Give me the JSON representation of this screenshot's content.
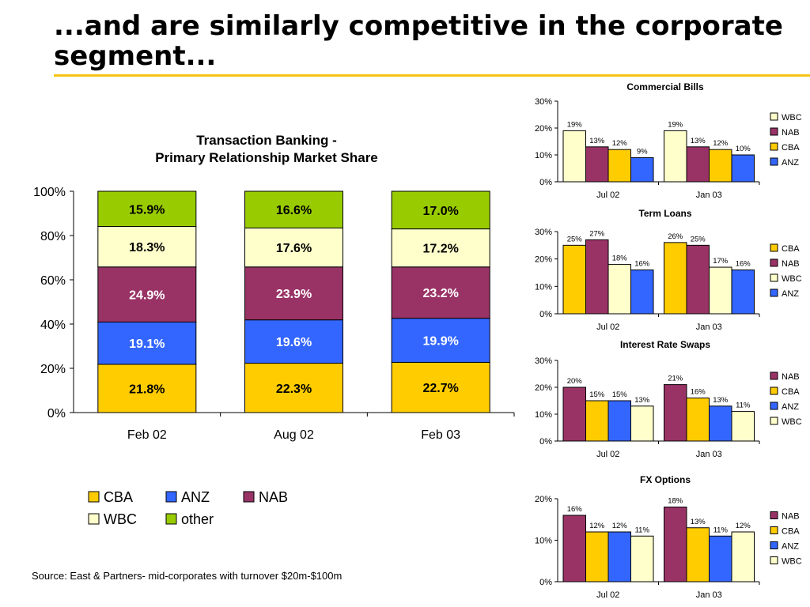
{
  "slide": {
    "title": "...and are similarly competitive in the corporate segment...",
    "source": "Source: East & Partners- mid-corporates with turnover $20m-$100m"
  },
  "colors": {
    "CBA": "#ffcc00",
    "ANZ": "#3366ff",
    "NAB": "#993366",
    "WBC": "#ffffcc",
    "other": "#99cc00",
    "accent_rule": "#f5c518"
  },
  "chart_data": [
    {
      "id": "transaction-banking",
      "type": "bar",
      "stacked": true,
      "title": [
        "Transaction Banking -",
        "Primary Relationship Market Share"
      ],
      "categories": [
        "Feb 02",
        "Aug 02",
        "Feb 03"
      ],
      "series": [
        {
          "name": "CBA",
          "values": [
            21.8,
            22.3,
            22.7
          ]
        },
        {
          "name": "ANZ",
          "values": [
            19.1,
            19.6,
            19.9
          ]
        },
        {
          "name": "NAB",
          "values": [
            24.9,
            23.9,
            23.2
          ]
        },
        {
          "name": "WBC",
          "values": [
            18.3,
            17.6,
            17.2
          ]
        },
        {
          "name": "other",
          "values": [
            15.9,
            16.6,
            17.0
          ]
        }
      ],
      "labels": [
        [
          "21.8%",
          "22.3%",
          "22.7%"
        ],
        [
          "19.1%",
          "19.6%",
          "19.9%"
        ],
        [
          "24.9%",
          "23.9%",
          "23.2%"
        ],
        [
          "18.3%",
          "17.6%",
          "17.2%"
        ],
        [
          "15.9%",
          "16.6%",
          "17.0%"
        ]
      ],
      "yticks": [
        "0%",
        "20%",
        "40%",
        "60%",
        "80%",
        "100%"
      ],
      "ylim": [
        0,
        100
      ],
      "legend": [
        "CBA",
        "ANZ",
        "NAB",
        "WBC",
        "other"
      ],
      "legend_position": "bottom"
    },
    {
      "id": "commercial-bills",
      "type": "bar",
      "title": "Commercial Bills",
      "categories": [
        "Jul 02",
        "Jan 03"
      ],
      "series": [
        {
          "name": "WBC",
          "values": [
            19,
            19
          ]
        },
        {
          "name": "NAB",
          "values": [
            13,
            13
          ]
        },
        {
          "name": "CBA",
          "values": [
            12,
            12
          ]
        },
        {
          "name": "ANZ",
          "values": [
            9,
            10
          ]
        }
      ],
      "labels": [
        [
          "19%",
          "19%"
        ],
        [
          "13%",
          "13%"
        ],
        [
          "12%",
          "12%"
        ],
        [
          "9%",
          "10%"
        ]
      ],
      "yticks": [
        "0%",
        "10%",
        "20%",
        "30%"
      ],
      "ylim": [
        0,
        30
      ],
      "legend_position": "right"
    },
    {
      "id": "term-loans",
      "type": "bar",
      "title": "Term Loans",
      "categories": [
        "Jul 02",
        "Jan 03"
      ],
      "series": [
        {
          "name": "CBA",
          "values": [
            25,
            26
          ]
        },
        {
          "name": "NAB",
          "values": [
            27,
            25
          ]
        },
        {
          "name": "WBC",
          "values": [
            18,
            17
          ]
        },
        {
          "name": "ANZ",
          "values": [
            16,
            16
          ]
        }
      ],
      "labels": [
        [
          "25%",
          "26%"
        ],
        [
          "27%",
          "25%"
        ],
        [
          "18%",
          "17%"
        ],
        [
          "16%",
          "16%"
        ]
      ],
      "yticks": [
        "0%",
        "10%",
        "20%",
        "30%"
      ],
      "ylim": [
        0,
        30
      ],
      "legend_position": "right"
    },
    {
      "id": "interest-rate-swaps",
      "type": "bar",
      "title": "Interest Rate Swaps",
      "categories": [
        "Jul 02",
        "Jan 03"
      ],
      "series": [
        {
          "name": "NAB",
          "values": [
            20,
            21
          ]
        },
        {
          "name": "CBA",
          "values": [
            15,
            16
          ]
        },
        {
          "name": "ANZ",
          "values": [
            15,
            13
          ]
        },
        {
          "name": "WBC",
          "values": [
            13,
            11
          ]
        }
      ],
      "labels": [
        [
          "20%",
          "21%"
        ],
        [
          "15%",
          "16%"
        ],
        [
          "15%",
          "13%"
        ],
        [
          "13%",
          "11%"
        ]
      ],
      "yticks": [
        "0%",
        "10%",
        "20%",
        "30%"
      ],
      "ylim": [
        0,
        30
      ],
      "legend_position": "right"
    },
    {
      "id": "fx-options",
      "type": "bar",
      "title": "FX Options",
      "categories": [
        "Jul 02",
        "Jan 03"
      ],
      "series": [
        {
          "name": "NAB",
          "values": [
            16,
            18
          ]
        },
        {
          "name": "CBA",
          "values": [
            12,
            13
          ]
        },
        {
          "name": "ANZ",
          "values": [
            12,
            11
          ]
        },
        {
          "name": "WBC",
          "values": [
            11,
            12
          ]
        }
      ],
      "labels": [
        [
          "16%",
          "18%"
        ],
        [
          "12%",
          "13%"
        ],
        [
          "12%",
          "11%"
        ],
        [
          "11%",
          "12%"
        ]
      ],
      "yticks": [
        "0%",
        "10%",
        "20%"
      ],
      "ylim": [
        0,
        20
      ],
      "legend_position": "right"
    }
  ]
}
